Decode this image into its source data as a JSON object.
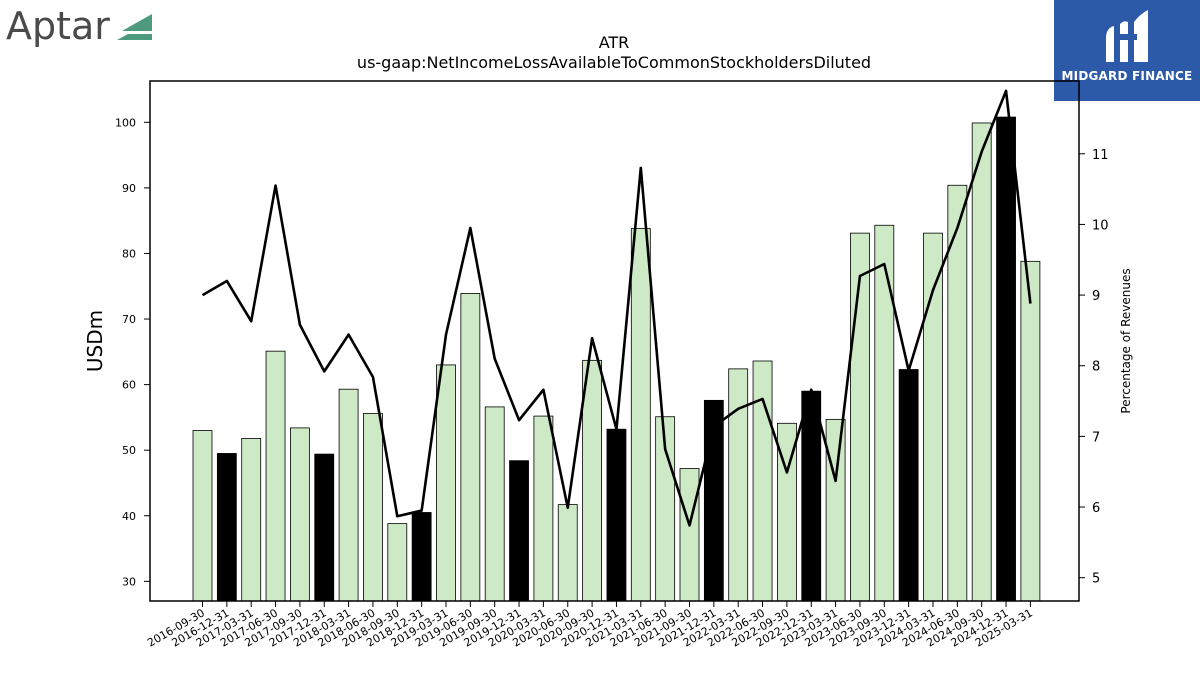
{
  "logos": {
    "left_text": "Aptar",
    "right_text": "MIDGARD FINANCE"
  },
  "colors": {
    "bar_regular": "#cde9c6",
    "bar_q4": "#000000",
    "line": "#000000",
    "aptar_mark": "#4e9a7e",
    "midgard_bg": "#2d5aa8"
  },
  "chart_data": {
    "type": "bar",
    "title": "ATR",
    "subtitle": "us-gaap:NetIncomeLossAvailableToCommonStockholdersDiluted",
    "ylabel": "USDm",
    "ylabel_right": "Percentage of Revenues",
    "ylim": [
      27,
      106.3
    ],
    "ylim_right": [
      4.67,
      12.03
    ],
    "yticks": [
      30,
      40,
      50,
      60,
      70,
      80,
      90,
      100
    ],
    "yticks_right": [
      5,
      6,
      7,
      8,
      9,
      10,
      11
    ],
    "grid": false,
    "categories": [
      "2016-09-30",
      "2016-12-31",
      "2017-03-31",
      "2017-06-30",
      "2017-09-30",
      "2017-12-31",
      "2018-03-31",
      "2018-06-30",
      "2018-09-30",
      "2018-12-31",
      "2019-03-31",
      "2019-06-30",
      "2019-09-30",
      "2019-12-31",
      "2020-03-31",
      "2020-06-30",
      "2020-09-30",
      "2020-12-31",
      "2021-03-31",
      "2021-06-30",
      "2021-09-30",
      "2021-12-31",
      "2022-03-31",
      "2022-06-30",
      "2022-09-30",
      "2022-12-31",
      "2023-03-31",
      "2023-06-30",
      "2023-09-30",
      "2023-12-31",
      "2024-03-31",
      "2024-06-30",
      "2024-09-30",
      "2024-12-31",
      "2025-03-31"
    ],
    "series": [
      {
        "kind": "bar",
        "axis": "left",
        "values": [
          53.0,
          49.5,
          51.8,
          65.1,
          53.4,
          49.4,
          59.3,
          55.6,
          38.8,
          40.5,
          63.0,
          73.9,
          56.6,
          48.4,
          55.2,
          41.7,
          63.7,
          53.2,
          83.8,
          55.1,
          47.2,
          57.6,
          62.4,
          63.6,
          54.1,
          59.0,
          54.7,
          83.1,
          84.3,
          62.3,
          83.1,
          90.4,
          99.9,
          100.8,
          78.8
        ],
        "highlight": [
          false,
          true,
          false,
          false,
          false,
          true,
          false,
          false,
          false,
          true,
          false,
          false,
          false,
          true,
          false,
          false,
          false,
          true,
          false,
          false,
          false,
          true,
          false,
          false,
          false,
          true,
          false,
          false,
          false,
          true,
          false,
          false,
          false,
          true,
          false
        ]
      },
      {
        "kind": "line",
        "axis": "right",
        "values": [
          9.0,
          9.2,
          8.63,
          10.55,
          8.58,
          7.92,
          8.44,
          7.84,
          5.87,
          5.95,
          8.44,
          9.95,
          8.1,
          7.23,
          7.66,
          5.99,
          8.39,
          7.1,
          10.8,
          6.82,
          5.74,
          7.14,
          7.39,
          7.53,
          6.49,
          7.66,
          6.37,
          9.27,
          9.44,
          7.93,
          9.07,
          9.95,
          11.03,
          11.89,
          8.88
        ]
      }
    ]
  }
}
